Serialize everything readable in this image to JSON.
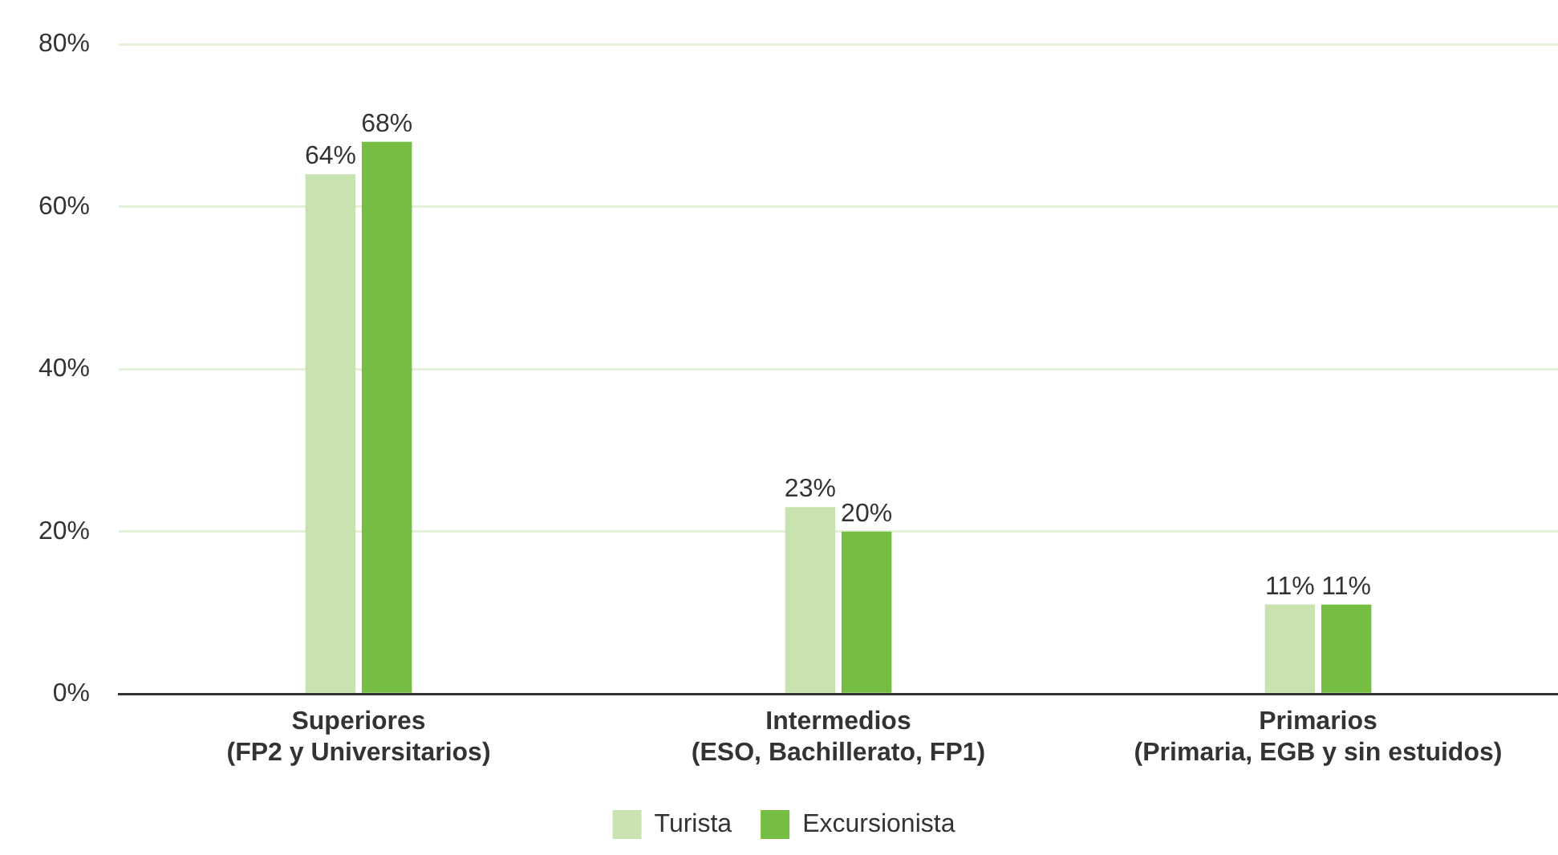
{
  "chart_data": {
    "type": "bar",
    "categories": [
      "Superiores\n(FP2 y Universitarios)",
      "Intermedios\n(ESO, Bachillerato, FP1)",
      "Primarios\n(Primaria, EGB y sin estuidos)"
    ],
    "series": [
      {
        "name": "Turista",
        "color": "#c8e2b0",
        "values": [
          64,
          23,
          11
        ],
        "value_labels": [
          "64%",
          "23%",
          "11%"
        ]
      },
      {
        "name": "Excursionista",
        "color": "#76bd43",
        "values": [
          68,
          20,
          11
        ],
        "value_labels": [
          "68%",
          "20%",
          "11%"
        ]
      }
    ],
    "ylim": [
      0,
      80
    ],
    "yticks": [
      {
        "value": 0,
        "label": "0%"
      },
      {
        "value": 20,
        "label": "20%"
      },
      {
        "value": 40,
        "label": "40%"
      },
      {
        "value": 60,
        "label": "60%"
      },
      {
        "value": 80,
        "label": "80%"
      }
    ],
    "grid": "y",
    "legend": "bottom"
  }
}
